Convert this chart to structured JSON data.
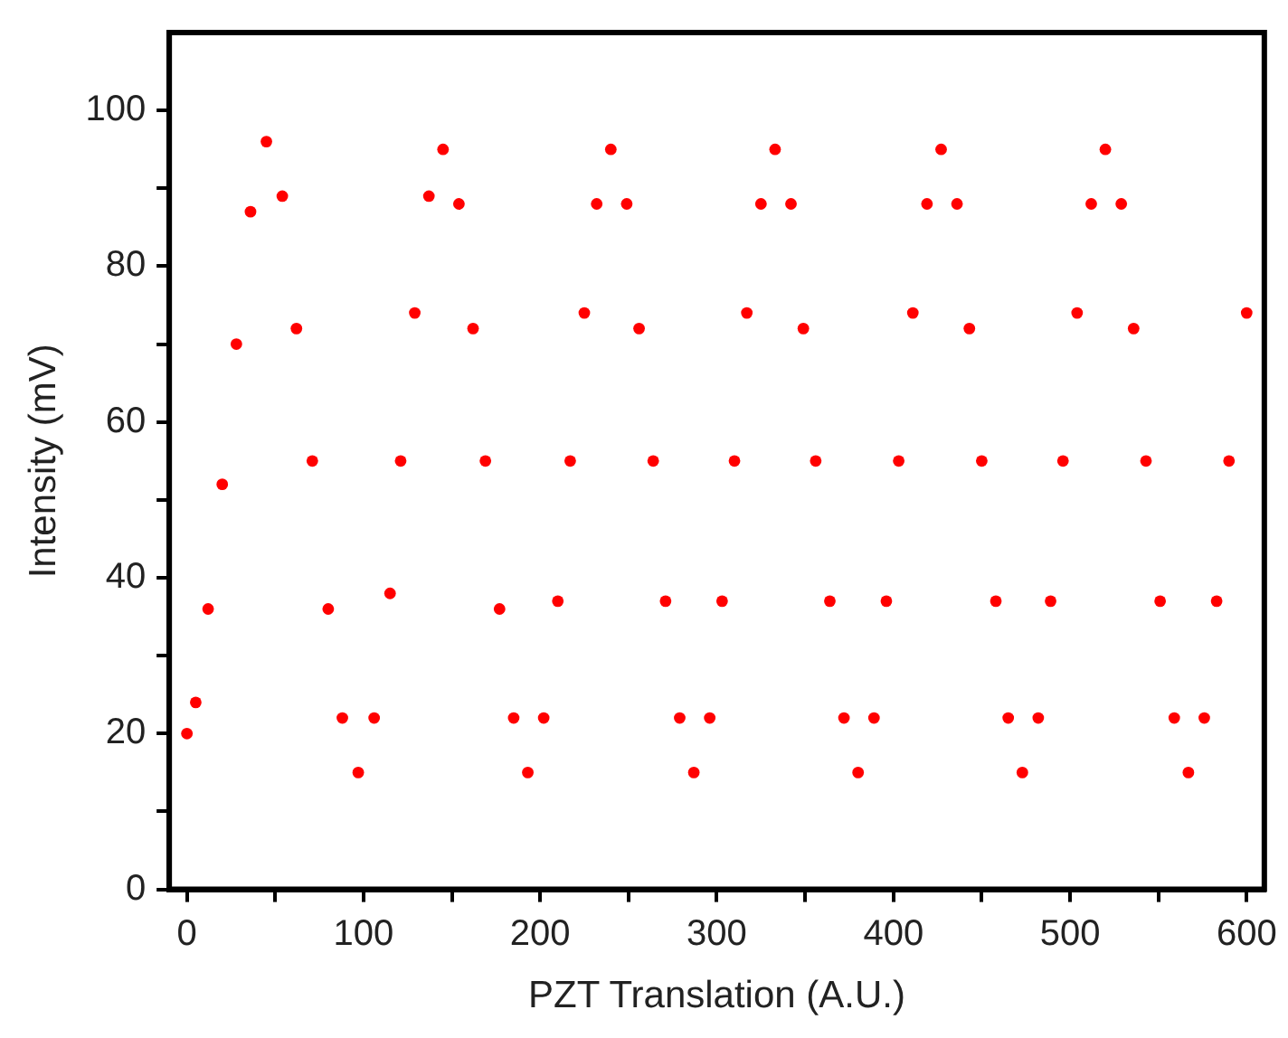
{
  "chart_data": {
    "type": "scatter",
    "xlabel": "PZT Translation (A.U.)",
    "ylabel": "Intensity (mV)",
    "xlim": [
      -10,
      610
    ],
    "ylim": [
      0,
      110
    ],
    "xticks": [
      0,
      {
        "value": 50,
        "label": null
      },
      100,
      {
        "value": 150,
        "label": null
      },
      200,
      {
        "value": 250,
        "label": null
      },
      300,
      {
        "value": 350,
        "label": null
      },
      400,
      {
        "value": 450,
        "label": null
      },
      500,
      {
        "value": 550,
        "label": null
      },
      600
    ],
    "yticks": [
      0,
      {
        "value": 10,
        "label": null
      },
      20,
      {
        "value": 30,
        "label": null
      },
      40,
      {
        "value": 50,
        "label": null
      },
      60,
      {
        "value": 70,
        "label": null
      },
      80,
      {
        "value": 90,
        "label": null
      },
      100
    ],
    "grid": false,
    "legend": false,
    "marker": "circle",
    "series": [
      {
        "color": "#ff0000",
        "x": [
          0,
          5,
          12,
          20,
          28,
          36,
          45,
          54,
          62,
          71,
          80,
          88,
          97,
          106,
          115,
          121,
          129,
          137,
          145,
          154,
          162,
          169,
          177,
          185,
          193,
          202,
          210,
          217,
          225,
          232,
          240,
          249,
          256,
          264,
          271,
          279,
          287,
          296,
          303,
          310,
          317,
          325,
          333,
          342,
          349,
          356,
          364,
          372,
          380,
          389,
          396,
          403,
          411,
          419,
          427,
          436,
          443,
          450,
          458,
          465,
          473,
          482,
          489,
          496,
          504,
          512,
          520,
          529,
          536,
          543,
          551,
          559,
          567,
          576,
          583,
          590,
          600
        ],
        "values": [
          20,
          24,
          36,
          52,
          70,
          87,
          96,
          89,
          72,
          55,
          36,
          22,
          15,
          22,
          38,
          55,
          74,
          89,
          95,
          88,
          72,
          55,
          36,
          22,
          15,
          22,
          37,
          55,
          74,
          88,
          95,
          88,
          72,
          55,
          37,
          22,
          15,
          22,
          37,
          55,
          74,
          88,
          95,
          88,
          72,
          55,
          37,
          22,
          15,
          22,
          37,
          55,
          74,
          88,
          95,
          88,
          72,
          55,
          37,
          22,
          15,
          22,
          37,
          55,
          74,
          88,
          95,
          88,
          72,
          55,
          37,
          22,
          15,
          22,
          37,
          55,
          74
        ]
      }
    ]
  }
}
